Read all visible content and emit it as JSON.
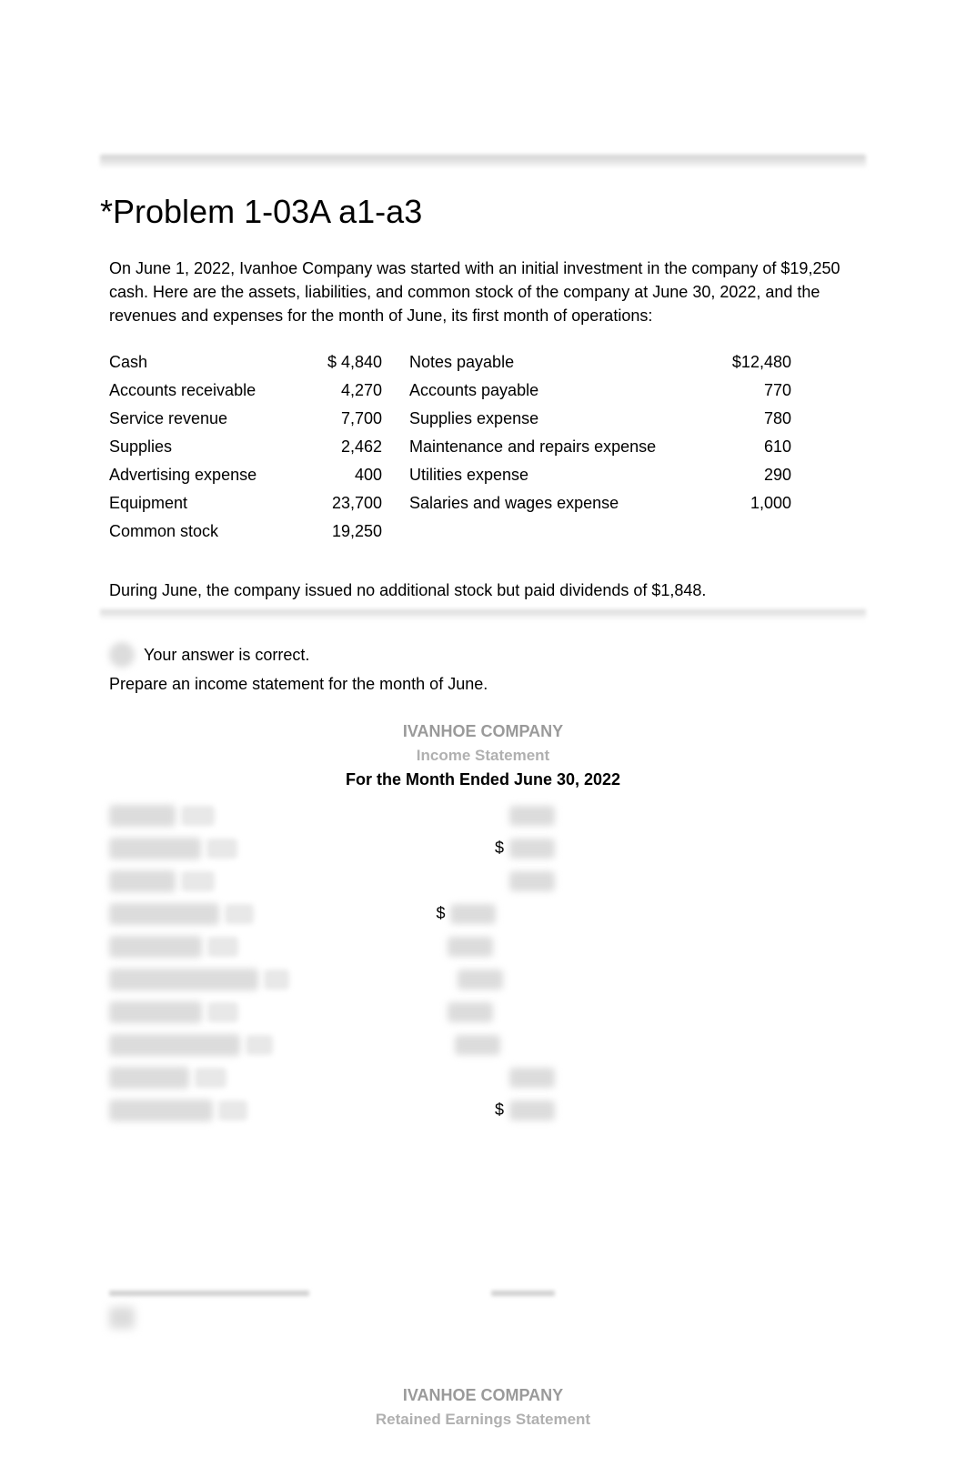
{
  "title": "*Problem 1-03A a1-a3",
  "intro": "On June 1, 2022, Ivanhoe Company was started with an initial investment in the company of $19,250 cash. Here are the assets, liabilities, and common stock of the company at June 30, 2022, and the revenues and expenses for the month of June, its first month of operations:",
  "accounts": {
    "left": [
      {
        "label": "Cash",
        "value": "$ 4,840"
      },
      {
        "label": "Accounts receivable",
        "value": "4,270"
      },
      {
        "label": "Service revenue",
        "value": "7,700"
      },
      {
        "label": "Supplies",
        "value": "2,462"
      },
      {
        "label": "Advertising expense",
        "value": "400"
      },
      {
        "label": "Equipment",
        "value": "23,700"
      },
      {
        "label": "Common stock",
        "value": "19,250"
      }
    ],
    "right": [
      {
        "label": "Notes payable",
        "value": "$12,480"
      },
      {
        "label": "Accounts payable",
        "value": "770"
      },
      {
        "label": "Supplies expense",
        "value": "780"
      },
      {
        "label": "Maintenance and repairs expense",
        "value": "610"
      },
      {
        "label": "Utilities expense",
        "value": "290"
      },
      {
        "label": "Salaries and wages expense",
        "value": "1,000"
      }
    ]
  },
  "note": "During June, the company issued no additional stock but paid dividends of $1,848.",
  "feedback": "Your answer is correct.",
  "instruction": "Prepare an income statement for the month of June.",
  "income_statement": {
    "company": "IVANHOE COMPANY",
    "title": "Income Statement",
    "period": "For the Month Ended June 30, 2022",
    "currency": "$",
    "lines": [
      {
        "pos": "outer",
        "currency": false
      },
      {
        "pos": "outer",
        "currency": true
      },
      {
        "pos": "outer",
        "currency": false
      },
      {
        "pos": "inner",
        "currency": true
      },
      {
        "pos": "inner",
        "currency": false
      },
      {
        "pos": "inner",
        "currency": false
      },
      {
        "pos": "inner",
        "currency": false
      },
      {
        "pos": "inner",
        "currency": false
      },
      {
        "pos": "outer",
        "currency": false
      },
      {
        "pos": "outer",
        "currency": true
      }
    ]
  },
  "retained": {
    "company": "IVANHOE COMPANY",
    "title": "Retained Earnings Statement"
  },
  "colors": {
    "text": "#000000",
    "muted": "#9a9a9a",
    "muted2": "#b0b0b0",
    "blur_bg": "#dcdcdc",
    "background": "#ffffff"
  },
  "typography": {
    "body_family": "Verdana",
    "title_family": "Arial",
    "title_size_pt": 27,
    "body_size_pt": 13
  }
}
